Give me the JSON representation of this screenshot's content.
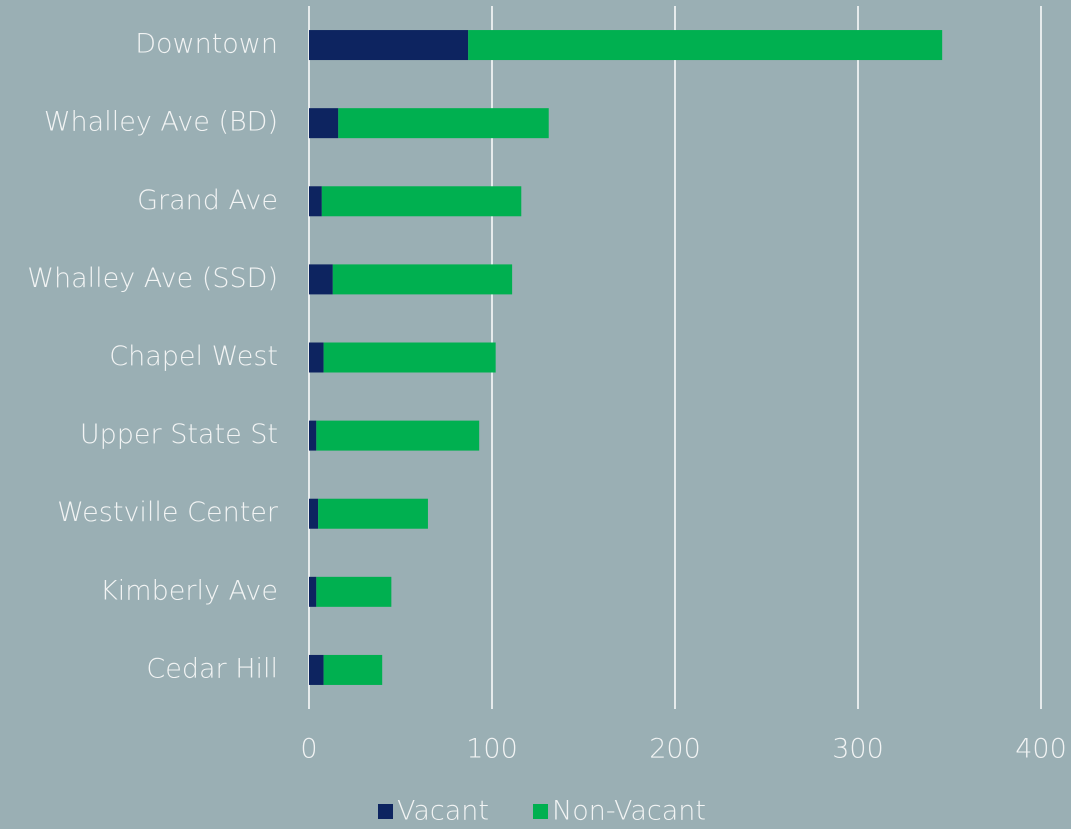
{
  "chart_data": {
    "type": "stacked_bar_horizontal",
    "categories": [
      "Downtown",
      "Whalley Ave (BD)",
      "Grand Ave",
      "Whalley Ave (SSD)",
      "Chapel West",
      "Upper State St",
      "Westville Center",
      "Kimberly Ave",
      "Cedar Hill"
    ],
    "series": [
      {
        "name": "Vacant",
        "color": "#0d2460",
        "values": [
          87,
          16,
          7,
          13,
          8,
          4,
          5,
          4,
          8
        ]
      },
      {
        "name": "Non-Vacant",
        "color": "#00b050",
        "values": [
          259,
          115,
          109,
          98,
          94,
          89,
          60,
          41,
          32
        ]
      }
    ],
    "xlim": [
      0,
      400
    ],
    "xticks": [
      0,
      100,
      200,
      300,
      400
    ],
    "grid": true,
    "legend": "bottom"
  }
}
